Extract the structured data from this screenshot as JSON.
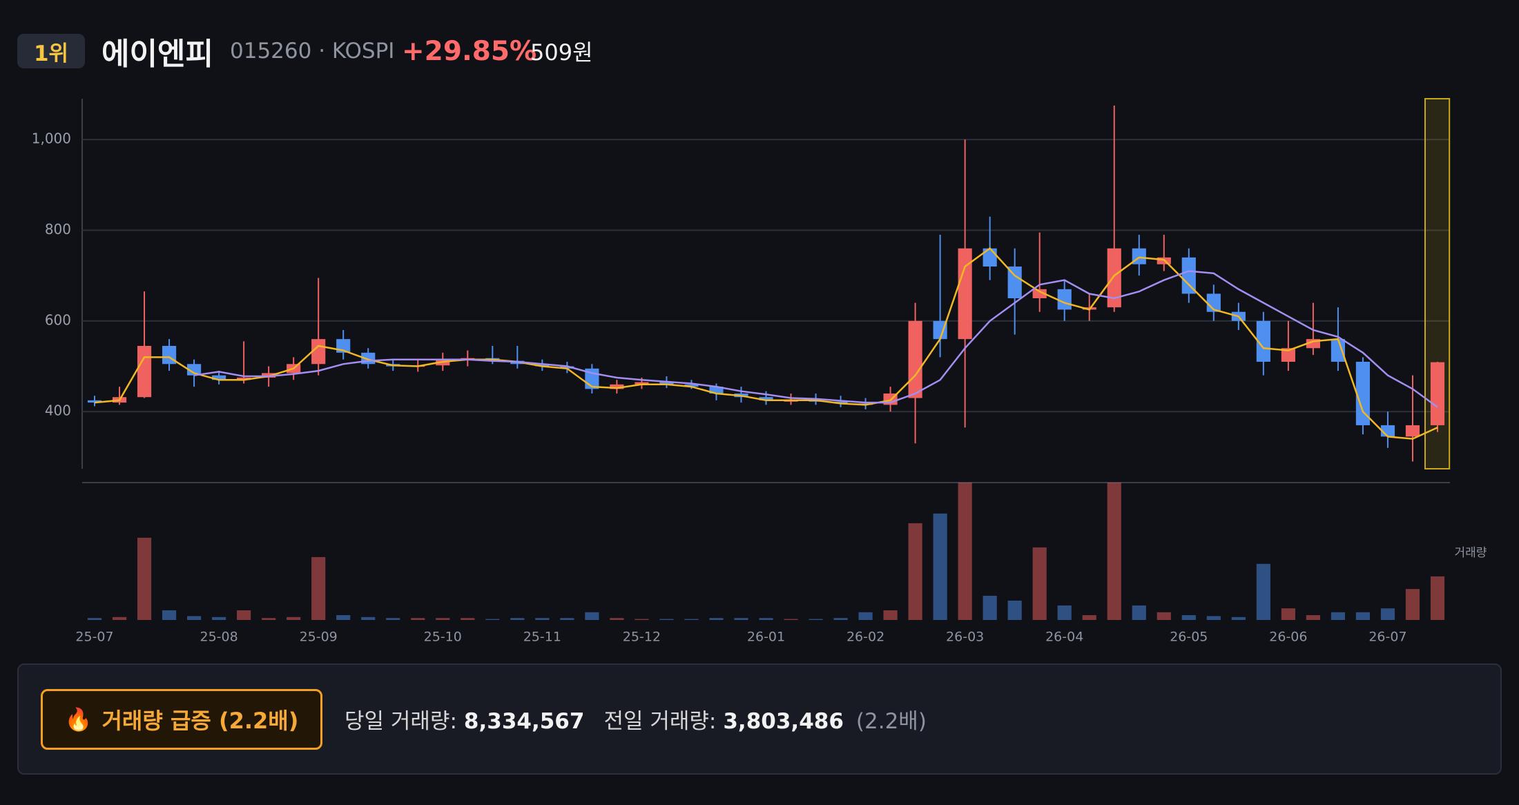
{
  "header": {
    "rank": "1위",
    "name": "에이엔피",
    "code": "015260 · KOSPI",
    "change": "+29.85%",
    "price": "509원"
  },
  "chart_data": {
    "type": "candlestick",
    "categories": [
      "25-07",
      null,
      null,
      null,
      null,
      "25-08",
      null,
      null,
      null,
      "25-09",
      null,
      null,
      null,
      null,
      "25-10",
      null,
      null,
      null,
      "25-11",
      null,
      null,
      null,
      "25-12",
      null,
      null,
      null,
      null,
      "26-01",
      null,
      null,
      null,
      "26-02",
      null,
      null,
      null,
      "26-03",
      null,
      null,
      null,
      "26-04",
      null,
      null,
      null,
      null,
      "26-05",
      null,
      null,
      null,
      "26-06",
      null,
      null,
      null,
      "26-07",
      null,
      null
    ],
    "open": [
      425,
      420,
      432,
      545,
      505,
      480,
      470,
      475,
      485,
      505,
      560,
      530,
      505,
      500,
      502,
      515,
      518,
      512,
      505,
      500,
      495,
      450,
      460,
      465,
      460,
      455,
      440,
      432,
      425,
      425,
      422,
      418,
      415,
      430,
      600,
      560,
      760,
      720,
      650,
      670,
      625,
      630,
      760,
      725,
      740,
      660,
      620,
      600,
      510,
      540,
      560,
      510,
      370,
      345,
      370
    ],
    "high": [
      435,
      455,
      665,
      560,
      515,
      490,
      555,
      500,
      520,
      695,
      580,
      540,
      515,
      515,
      530,
      535,
      545,
      545,
      515,
      510,
      505,
      470,
      475,
      478,
      470,
      462,
      455,
      445,
      440,
      440,
      435,
      430,
      455,
      640,
      790,
      1000,
      830,
      760,
      795,
      690,
      660,
      1075,
      790,
      790,
      760,
      680,
      640,
      620,
      600,
      640,
      630,
      520,
      400,
      480,
      510
    ],
    "low": [
      412,
      415,
      430,
      490,
      455,
      460,
      462,
      455,
      470,
      480,
      515,
      495,
      490,
      488,
      490,
      500,
      505,
      495,
      490,
      485,
      440,
      440,
      450,
      452,
      450,
      425,
      420,
      415,
      415,
      415,
      410,
      405,
      400,
      330,
      520,
      365,
      690,
      570,
      620,
      600,
      600,
      620,
      700,
      710,
      640,
      600,
      580,
      480,
      490,
      525,
      490,
      350,
      320,
      290,
      355
    ],
    "close": [
      420,
      432,
      545,
      505,
      480,
      470,
      475,
      485,
      505,
      560,
      530,
      505,
      500,
      502,
      515,
      518,
      512,
      505,
      500,
      495,
      450,
      460,
      465,
      460,
      455,
      440,
      432,
      425,
      425,
      422,
      418,
      415,
      440,
      600,
      560,
      760,
      720,
      650,
      670,
      625,
      630,
      760,
      725,
      740,
      660,
      620,
      600,
      510,
      540,
      560,
      510,
      370,
      345,
      370,
      509
    ],
    "volume": [
      370000,
      555000,
      15725000,
      1850000,
      740000,
      555000,
      1850000,
      370000,
      555000,
      12025000,
      925000,
      555000,
      370000,
      370000,
      370000,
      370000,
      185000,
      370000,
      370000,
      370000,
      1480000,
      370000,
      185000,
      185000,
      185000,
      370000,
      370000,
      370000,
      185000,
      185000,
      370000,
      1480000,
      1850000,
      18500000,
      20350000,
      26270000,
      4625000,
      3700000,
      13875000,
      2775000,
      925000,
      26270000,
      2775000,
      1480000,
      925000,
      740000,
      555000,
      10730000,
      2220000,
      925000,
      1480000,
      1480000,
      2220000,
      5920000,
      8334567
    ],
    "up_color": "#f0625f",
    "down_color": "#4f8ff0",
    "highlight_color": "#c9a81c",
    "ma_lines": [
      {
        "color": "#f2b824",
        "values": [
          420,
          425,
          520,
          520,
          485,
          470,
          470,
          478,
          495,
          545,
          535,
          515,
          502,
          500,
          510,
          515,
          515,
          510,
          500,
          495,
          455,
          452,
          460,
          460,
          455,
          440,
          435,
          425,
          425,
          425,
          418,
          415,
          425,
          480,
          560,
          720,
          760,
          700,
          665,
          640,
          625,
          700,
          740,
          735,
          680,
          625,
          610,
          540,
          535,
          555,
          560,
          400,
          345,
          340,
          365
        ]
      },
      {
        "color": "#a48ef0",
        "values": [
          null,
          null,
          null,
          null,
          480,
          488,
          478,
          478,
          483,
          490,
          505,
          512,
          515,
          515,
          515,
          515,
          512,
          510,
          505,
          500,
          485,
          475,
          470,
          466,
          462,
          455,
          445,
          438,
          430,
          428,
          424,
          420,
          420,
          440,
          470,
          540,
          600,
          640,
          680,
          690,
          660,
          650,
          665,
          690,
          710,
          705,
          670,
          640,
          610,
          580,
          565,
          530,
          480,
          450,
          410
        ]
      }
    ],
    "ylim": [
      274,
      1090
    ],
    "yticks": [
      400,
      600,
      800,
      {
        "value": 1000,
        "label": "1,000"
      }
    ],
    "grid": true,
    "volume_label": "거래량"
  },
  "alert": {
    "icon": "🔥",
    "badge": "거래량 급증 (2.2배)",
    "today_label": "당일 거래량:",
    "today_value": "8,334,567",
    "prev_label": "전일 거래량:",
    "prev_value": "3,803,486",
    "ratio": "(2.2배)"
  }
}
